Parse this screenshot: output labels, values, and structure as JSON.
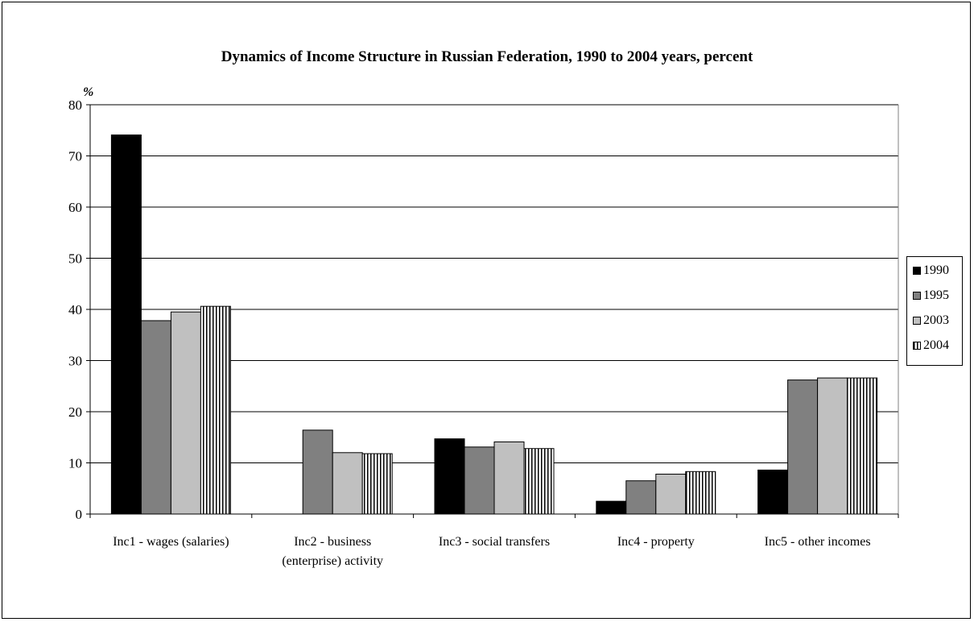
{
  "chart_data": {
    "type": "bar",
    "title": "Dynamics of Income Structure in Russian Federation, 1990 to 2004 years, percent",
    "ylabel": "%",
    "xlabel": "",
    "ylim": [
      0,
      80
    ],
    "yticks": [
      0,
      10,
      20,
      30,
      40,
      50,
      60,
      70,
      80
    ],
    "grid": true,
    "legend_position": "right",
    "categories": [
      "Inc1 - wages (salaries)",
      "Inc2 - business (enterprise) activity",
      "Inc3 -  social transfers",
      "Inc4 - property",
      "Inc5 - other incomes"
    ],
    "category_lines": [
      [
        "Inc1 - wages (salaries)"
      ],
      [
        "Inc2 - business",
        "(enterprise) activity"
      ],
      [
        "Inc3 -  social transfers"
      ],
      [
        "Inc4 - property"
      ],
      [
        "Inc5 - other incomes"
      ]
    ],
    "series": [
      {
        "name": "1990",
        "values": [
          74.1,
          0,
          14.7,
          2.5,
          8.6
        ],
        "color": "#000000",
        "pattern": "solid"
      },
      {
        "name": "1995",
        "values": [
          37.8,
          16.4,
          13.1,
          6.5,
          26.2
        ],
        "color": "#808080",
        "pattern": "solid"
      },
      {
        "name": "2003",
        "values": [
          39.5,
          12.0,
          14.1,
          7.8,
          26.6
        ],
        "color": "#c0c0c0",
        "pattern": "solid"
      },
      {
        "name": "2004",
        "values": [
          40.6,
          11.8,
          12.8,
          8.3,
          26.6
        ],
        "color": "#ffffff",
        "pattern": "vertical-stripes"
      }
    ]
  }
}
